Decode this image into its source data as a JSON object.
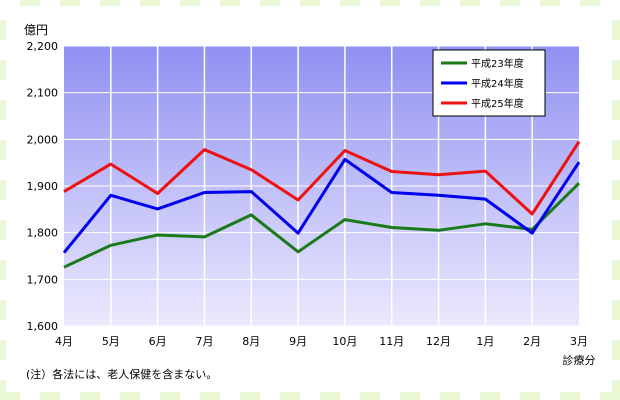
{
  "chart_data": {
    "type": "line",
    "unit_label": "億円",
    "categories": [
      "4月",
      "5月",
      "6月",
      "7月",
      "8月",
      "9月",
      "10月",
      "11月",
      "12月",
      "1月",
      "2月",
      "3月"
    ],
    "x_suffix": "診療分",
    "ylim": [
      1600,
      2200
    ],
    "yticks": [
      1600,
      1700,
      1800,
      1900,
      2000,
      2100,
      2200
    ],
    "ytick_labels": [
      "1,600",
      "1,700",
      "1,800",
      "1,900",
      "2,000",
      "2,100",
      "2,200"
    ],
    "grid": true,
    "legend_position": "top-right",
    "series": [
      {
        "name": "平成23年度",
        "color": "#1a7a1a",
        "values": [
          1726,
          1773,
          1795,
          1791,
          1838,
          1759,
          1828,
          1811,
          1805,
          1819,
          1807,
          1906
        ]
      },
      {
        "name": "平成24年度",
        "color": "#0000ee",
        "values": [
          1757,
          1880,
          1851,
          1886,
          1888,
          1799,
          1957,
          1886,
          1880,
          1872,
          1799,
          1951
        ]
      },
      {
        "name": "平成25年度",
        "color": "#ee1111",
        "values": [
          1888,
          1947,
          1884,
          1978,
          1935,
          1870,
          1976,
          1931,
          1924,
          1932,
          1840,
          1995
        ]
      }
    ]
  },
  "note": "(注）各法には、老人保健を含まない。"
}
